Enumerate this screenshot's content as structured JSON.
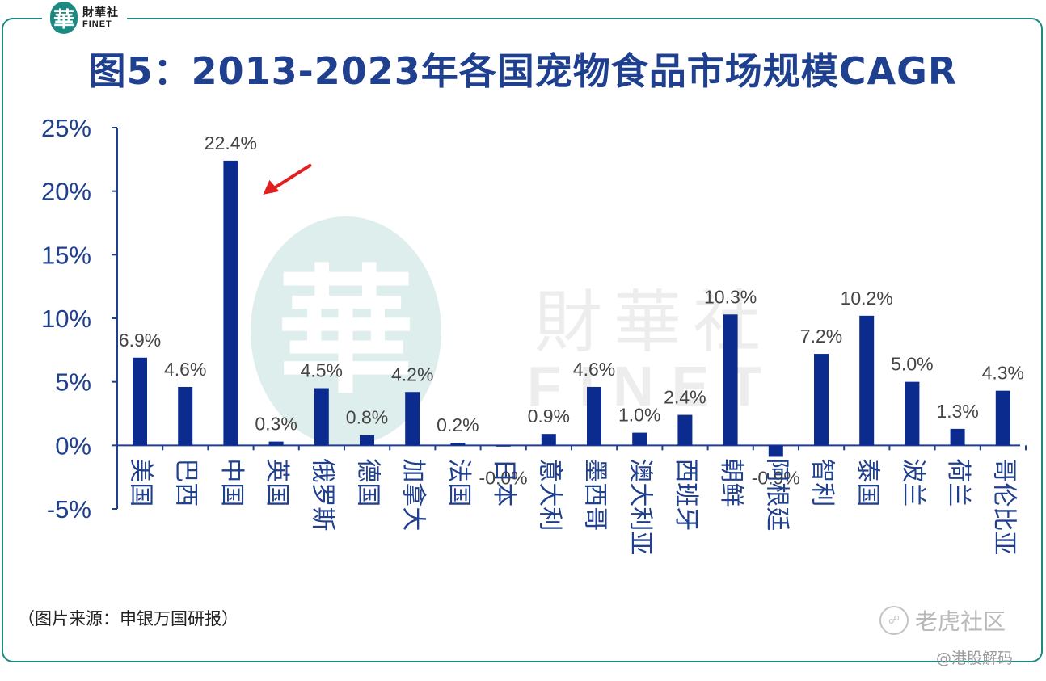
{
  "header": {
    "logo_char": "華",
    "logo_cn": "財華社",
    "logo_en": "FINET"
  },
  "title": "图5：2013-2023年各国宠物食品市场规模CAGR",
  "watermark": {
    "char": "華",
    "cn": "財華社",
    "en": "FINET"
  },
  "source": "（图片来源：申银万国研报）",
  "brand": {
    "name": "老虎社区",
    "icon": "tiger-logo-icon",
    "handle": "@港股解码"
  },
  "colors": {
    "bar": "#0b2b8e",
    "title": "#1f3f8f",
    "tick": "#1f3f8f",
    "frame": "#1c8a80",
    "arrow": "#e02020"
  },
  "chart_data": {
    "type": "bar",
    "title": "图5：2013-2023年各国宠物食品市场规模CAGR",
    "xlabel": "",
    "ylabel": "",
    "ylim": [
      -0.05,
      0.25
    ],
    "yticks": [
      0.25,
      0.2,
      0.15,
      0.1,
      0.05,
      0.0,
      -0.05
    ],
    "ytick_labels": [
      "25%",
      "20%",
      "15%",
      "10%",
      "5%",
      "0%",
      "-5%"
    ],
    "categories": [
      "美国",
      "巴西",
      "中国",
      "英国",
      "俄罗斯",
      "德国",
      "加拿大",
      "法国",
      "日本",
      "意大利",
      "墨西哥",
      "澳大利亚",
      "西班牙",
      "朝鲜",
      "阿根廷",
      "智利",
      "泰国",
      "波兰",
      "荷兰",
      "哥伦比亚"
    ],
    "values": [
      0.069,
      0.046,
      0.224,
      0.003,
      0.045,
      0.008,
      0.042,
      0.002,
      -0.0005,
      0.009,
      0.046,
      0.01,
      0.024,
      0.103,
      -0.009,
      0.072,
      0.102,
      0.05,
      0.013,
      0.043
    ],
    "data_labels": [
      "6.9%",
      "4.6%",
      "22.4%",
      "0.3%",
      "4.5%",
      "0.8%",
      "4.2%",
      "0.2%",
      "-0.0%",
      "0.9%",
      "4.6%",
      "1.0%",
      "2.4%",
      "10.3%",
      "-0.9%",
      "7.2%",
      "10.2%",
      "5.0%",
      "1.3%",
      "4.3%"
    ],
    "annotations": [
      {
        "type": "arrow",
        "target": "中国"
      }
    ],
    "grid": false,
    "legend": "none"
  }
}
